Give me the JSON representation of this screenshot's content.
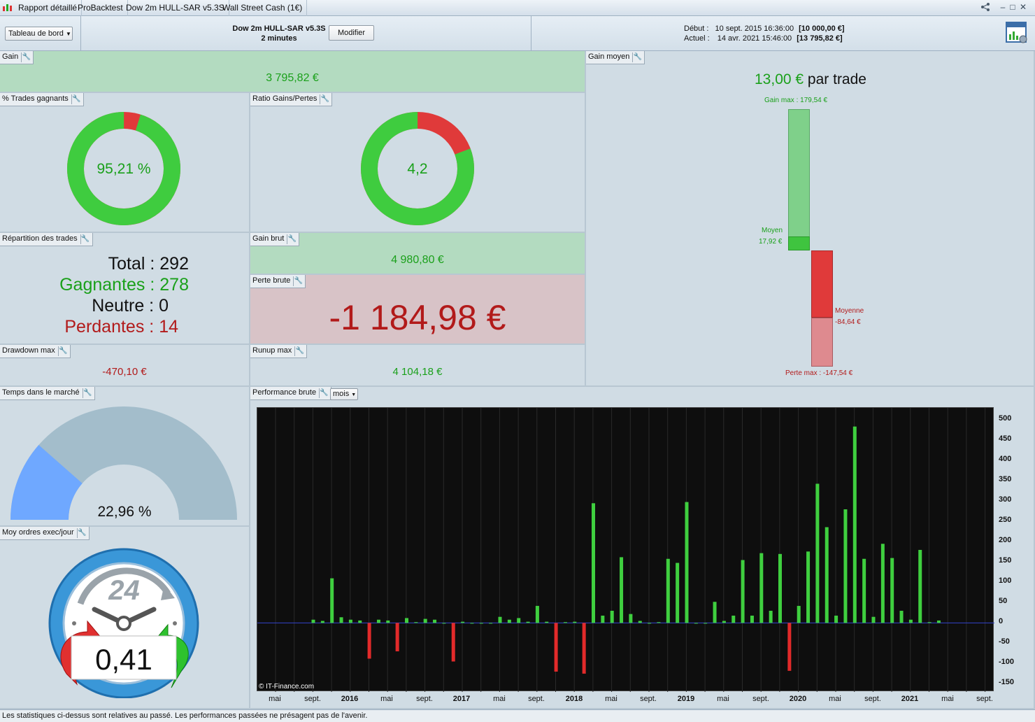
{
  "titlebar": {
    "tabs": [
      "Rapport détaillé",
      "ProBacktest",
      "Dow 2m HULL-SAR v5.3S",
      "Wall Street Cash (1€)"
    ]
  },
  "header": {
    "view_select": "Tableau de bord",
    "strategy_name": "Dow 2m HULL-SAR v5.3S",
    "timeframe": "2 minutes",
    "modify_button": "Modifier",
    "start_label": "Début :",
    "start_date": "10 sept. 2015 16:36:00",
    "start_capital": "[10 000,00 €]",
    "current_label": "Actuel :",
    "current_date": "14 avr. 2021 15:46:00",
    "current_capital": "[13 795,82 €]"
  },
  "gain": {
    "title": "Gain",
    "value": "3 795,82 €"
  },
  "gain_moyen": {
    "title": "Gain moyen",
    "value": "13,00 €",
    "suffix": "par trade",
    "gain_max_label": "Gain max : 179,54 €",
    "moyen_label": "Moyen",
    "moyen_value": "17,92 €",
    "moyenne_label": "Moyenne",
    "moyenne_value": "-84,64 €",
    "perte_max_label": "Perte max : -147,54 €"
  },
  "trades_gagnants": {
    "title": "% Trades gagnants",
    "value": "95,21 %",
    "fraction": 0.9521
  },
  "ratio": {
    "title": "Ratio Gains/Pertes",
    "value": "4,2",
    "fraction": 0.8078
  },
  "repartition": {
    "title": "Répartition des trades",
    "total_label": "Total :",
    "total": "292",
    "gagnantes_label": "Gagnantes :",
    "gagnantes": "278",
    "neutre_label": "Neutre :",
    "neutre": "0",
    "perdantes_label": "Perdantes :",
    "perdantes": "14"
  },
  "gain_brut": {
    "title": "Gain brut",
    "value": "4 980,80 €"
  },
  "perte_brute": {
    "title": "Perte brute",
    "value": "-1 184,98 €"
  },
  "drawdown": {
    "title": "Drawdown max",
    "value": "-470,10 €"
  },
  "runup": {
    "title": "Runup max",
    "value": "4 104,18 €"
  },
  "temps_marche": {
    "title": "Temps dans le marché",
    "value": "22,96 %",
    "fraction": 0.2296
  },
  "moy_ordres": {
    "title": "Moy ordres exec/jour",
    "value": "0,41",
    "clock_label": "24"
  },
  "performance": {
    "title": "Performance brute",
    "period_select": "mois",
    "copyright": "© IT-Finance.com"
  },
  "chart_data": {
    "type": "bar",
    "title": "Performance brute",
    "ylim": [
      -170,
      530
    ],
    "yticks": [
      500,
      450,
      400,
      350,
      300,
      250,
      200,
      150,
      100,
      50,
      0,
      -50,
      -100,
      -150
    ],
    "x_tick_labels": [
      "mai",
      "sept.",
      "2016",
      "mai",
      "sept.",
      "2017",
      "mai",
      "sept.",
      "2018",
      "mai",
      "sept.",
      "2019",
      "mai",
      "sept.",
      "2020",
      "mai",
      "sept.",
      "2021",
      "mai",
      "sept."
    ],
    "x": [
      "2015-09",
      "2015-10",
      "2015-11",
      "2015-12",
      "2016-01",
      "2016-02",
      "2016-03",
      "2016-04",
      "2016-05",
      "2016-06",
      "2016-07",
      "2016-08",
      "2016-09",
      "2016-10",
      "2016-11",
      "2016-12",
      "2017-01",
      "2017-02",
      "2017-03",
      "2017-04",
      "2017-05",
      "2017-06",
      "2017-07",
      "2017-08",
      "2017-09",
      "2017-10",
      "2017-11",
      "2017-12",
      "2018-01",
      "2018-02",
      "2018-03",
      "2018-04",
      "2018-05",
      "2018-06",
      "2018-07",
      "2018-08",
      "2018-09",
      "2018-10",
      "2018-11",
      "2018-12",
      "2019-01",
      "2019-02",
      "2019-03",
      "2019-04",
      "2019-05",
      "2019-06",
      "2019-07",
      "2019-08",
      "2019-09",
      "2019-10",
      "2019-11",
      "2019-12",
      "2020-01",
      "2020-02",
      "2020-03",
      "2020-04",
      "2020-05",
      "2020-06",
      "2020-07",
      "2020-08",
      "2020-09",
      "2020-10",
      "2020-11",
      "2020-12",
      "2021-01",
      "2021-02",
      "2021-03",
      "2021-04"
    ],
    "values": [
      8,
      5,
      110,
      14,
      8,
      6,
      -88,
      8,
      6,
      -70,
      12,
      2,
      10,
      8,
      0,
      -95,
      3,
      0,
      0,
      0,
      15,
      8,
      12,
      3,
      42,
      3,
      -120,
      2,
      3,
      -125,
      295,
      18,
      30,
      162,
      22,
      5,
      0,
      2,
      158,
      148,
      298,
      0,
      0,
      52,
      5,
      18,
      155,
      18,
      172,
      30,
      170,
      -118,
      42,
      176,
      343,
      236,
      18,
      280,
      484,
      158,
      15,
      195,
      160,
      30,
      8,
      180,
      2,
      6
    ]
  }
}
